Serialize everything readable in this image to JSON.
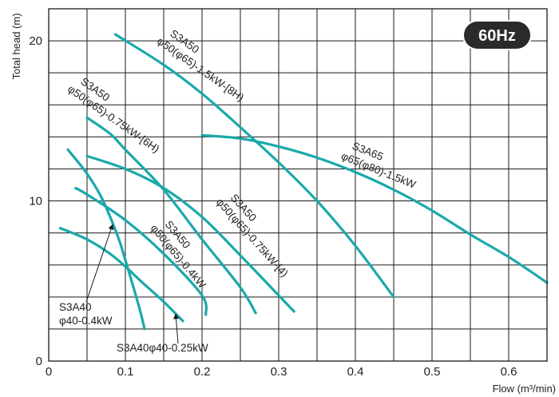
{
  "chart_data": {
    "type": "line",
    "title": "",
    "badge": "60Hz",
    "xlabel": "Flow (m³/min)",
    "ylabel": "Total head (m)",
    "xlim": [
      0,
      0.65
    ],
    "ylim": [
      0,
      22
    ],
    "grid": true,
    "x_ticks": [
      "0",
      "0.1",
      "0.2",
      "0.3",
      "0.4",
      "0.5",
      "0.6"
    ],
    "y_ticks": [
      "0",
      "10",
      "20"
    ],
    "line_color": "#1aa9ab",
    "series": [
      {
        "x": [
          0.087,
          0.15,
          0.2,
          0.25,
          0.3,
          0.35,
          0.4,
          0.45
        ],
        "y": [
          20.4,
          18.5,
          16.7,
          14.6,
          12.4,
          10.0,
          7.2,
          4.0
        ]
      },
      {
        "x": [
          0.2,
          0.25,
          0.3,
          0.35,
          0.4,
          0.45,
          0.5,
          0.55,
          0.6,
          0.65
        ],
        "y": [
          14.1,
          13.9,
          13.4,
          12.7,
          11.8,
          10.7,
          9.4,
          7.9,
          6.5,
          4.9
        ]
      },
      {
        "x": [
          0.05,
          0.1,
          0.15,
          0.2,
          0.25,
          0.3,
          0.32
        ],
        "y": [
          12.8,
          12.0,
          10.8,
          9.0,
          6.6,
          4.1,
          3.1
        ]
      },
      {
        "x": [
          0.05,
          0.08,
          0.1,
          0.15,
          0.2,
          0.25,
          0.27
        ],
        "y": [
          15.2,
          14.2,
          13.2,
          10.7,
          7.6,
          4.6,
          3.0
        ]
      },
      {
        "x": [
          0.035,
          0.05,
          0.1,
          0.15,
          0.2,
          0.205
        ],
        "y": [
          10.8,
          10.4,
          8.8,
          6.7,
          4.1,
          2.9
        ]
      },
      {
        "x": [
          0.025,
          0.05,
          0.07,
          0.09,
          0.1,
          0.11,
          0.12,
          0.125
        ],
        "y": [
          13.2,
          11.7,
          10.1,
          7.8,
          6.3,
          4.7,
          3.0,
          2.0
        ]
      },
      {
        "x": [
          0.015,
          0.05,
          0.08,
          0.1,
          0.12,
          0.15,
          0.175
        ],
        "y": [
          8.3,
          7.6,
          6.7,
          5.9,
          5.0,
          3.7,
          2.5
        ]
      }
    ],
    "annotations": [
      {
        "text_lines": [
          "S3A50",
          "φ50(φ65)-1.5kW-[8H)"
        ]
      },
      {
        "text_lines": [
          "S3A65",
          "φ65(φ80)-1.5kW"
        ]
      },
      {
        "text_lines": [
          "S3A50",
          "φ50(φ65)-0.75kW-[4)"
        ]
      },
      {
        "text_lines": [
          "S3A50",
          "φ50(φ65)-0.75kW-[6H)"
        ]
      },
      {
        "text_lines": [
          "S3A50",
          "φ50(φ65)-0.4kW"
        ]
      },
      {
        "text_lines": [
          "S3A40",
          "φ40-0.4kW"
        ]
      },
      {
        "text_lines": [
          "S3A40φ40-0.25kW"
        ]
      }
    ]
  }
}
